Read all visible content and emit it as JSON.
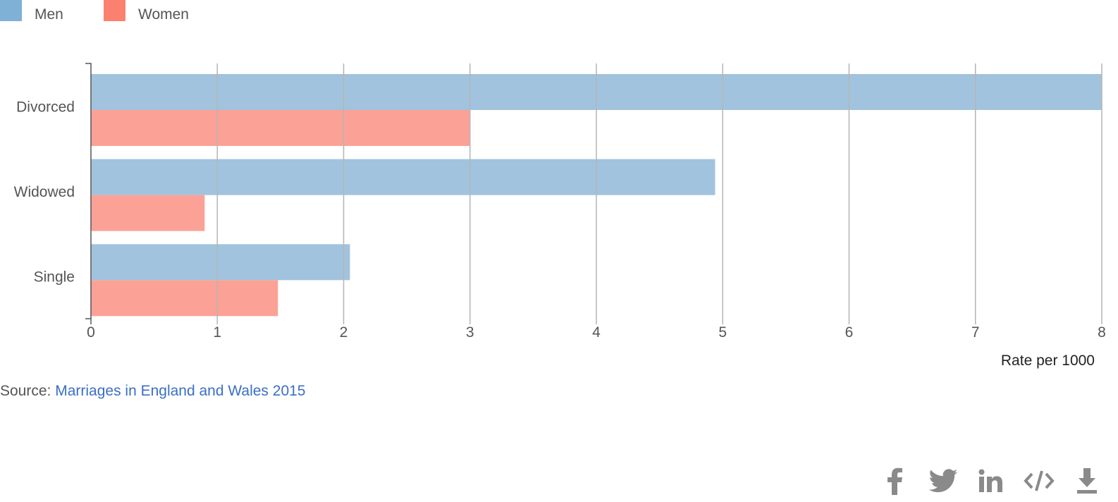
{
  "chart_data": {
    "type": "bar",
    "orientation": "horizontal",
    "categories": [
      "Divorced",
      "Widowed",
      "Single"
    ],
    "series": [
      {
        "name": "Men",
        "color": "#a1c3dd",
        "legend_color": "#7fb0d6",
        "values": [
          8.0,
          4.94,
          2.05
        ]
      },
      {
        "name": "Women",
        "color": "#fca196",
        "legend_color": "#fb8070",
        "values": [
          3.0,
          0.9,
          1.48
        ]
      }
    ],
    "xlabel": "Rate per 1000",
    "ylabel": "",
    "xlim": [
      0,
      8
    ],
    "xticks": [
      "0",
      "1",
      "2",
      "3",
      "4",
      "5",
      "6",
      "7",
      "8"
    ],
    "grid": true,
    "legend_position": "top-left"
  },
  "source": {
    "prefix": "Source: ",
    "link_text": "Marriages in England and Wales 2015"
  },
  "share": {
    "icons": [
      "facebook-icon",
      "twitter-icon",
      "linkedin-icon",
      "embed-icon",
      "download-icon"
    ]
  }
}
